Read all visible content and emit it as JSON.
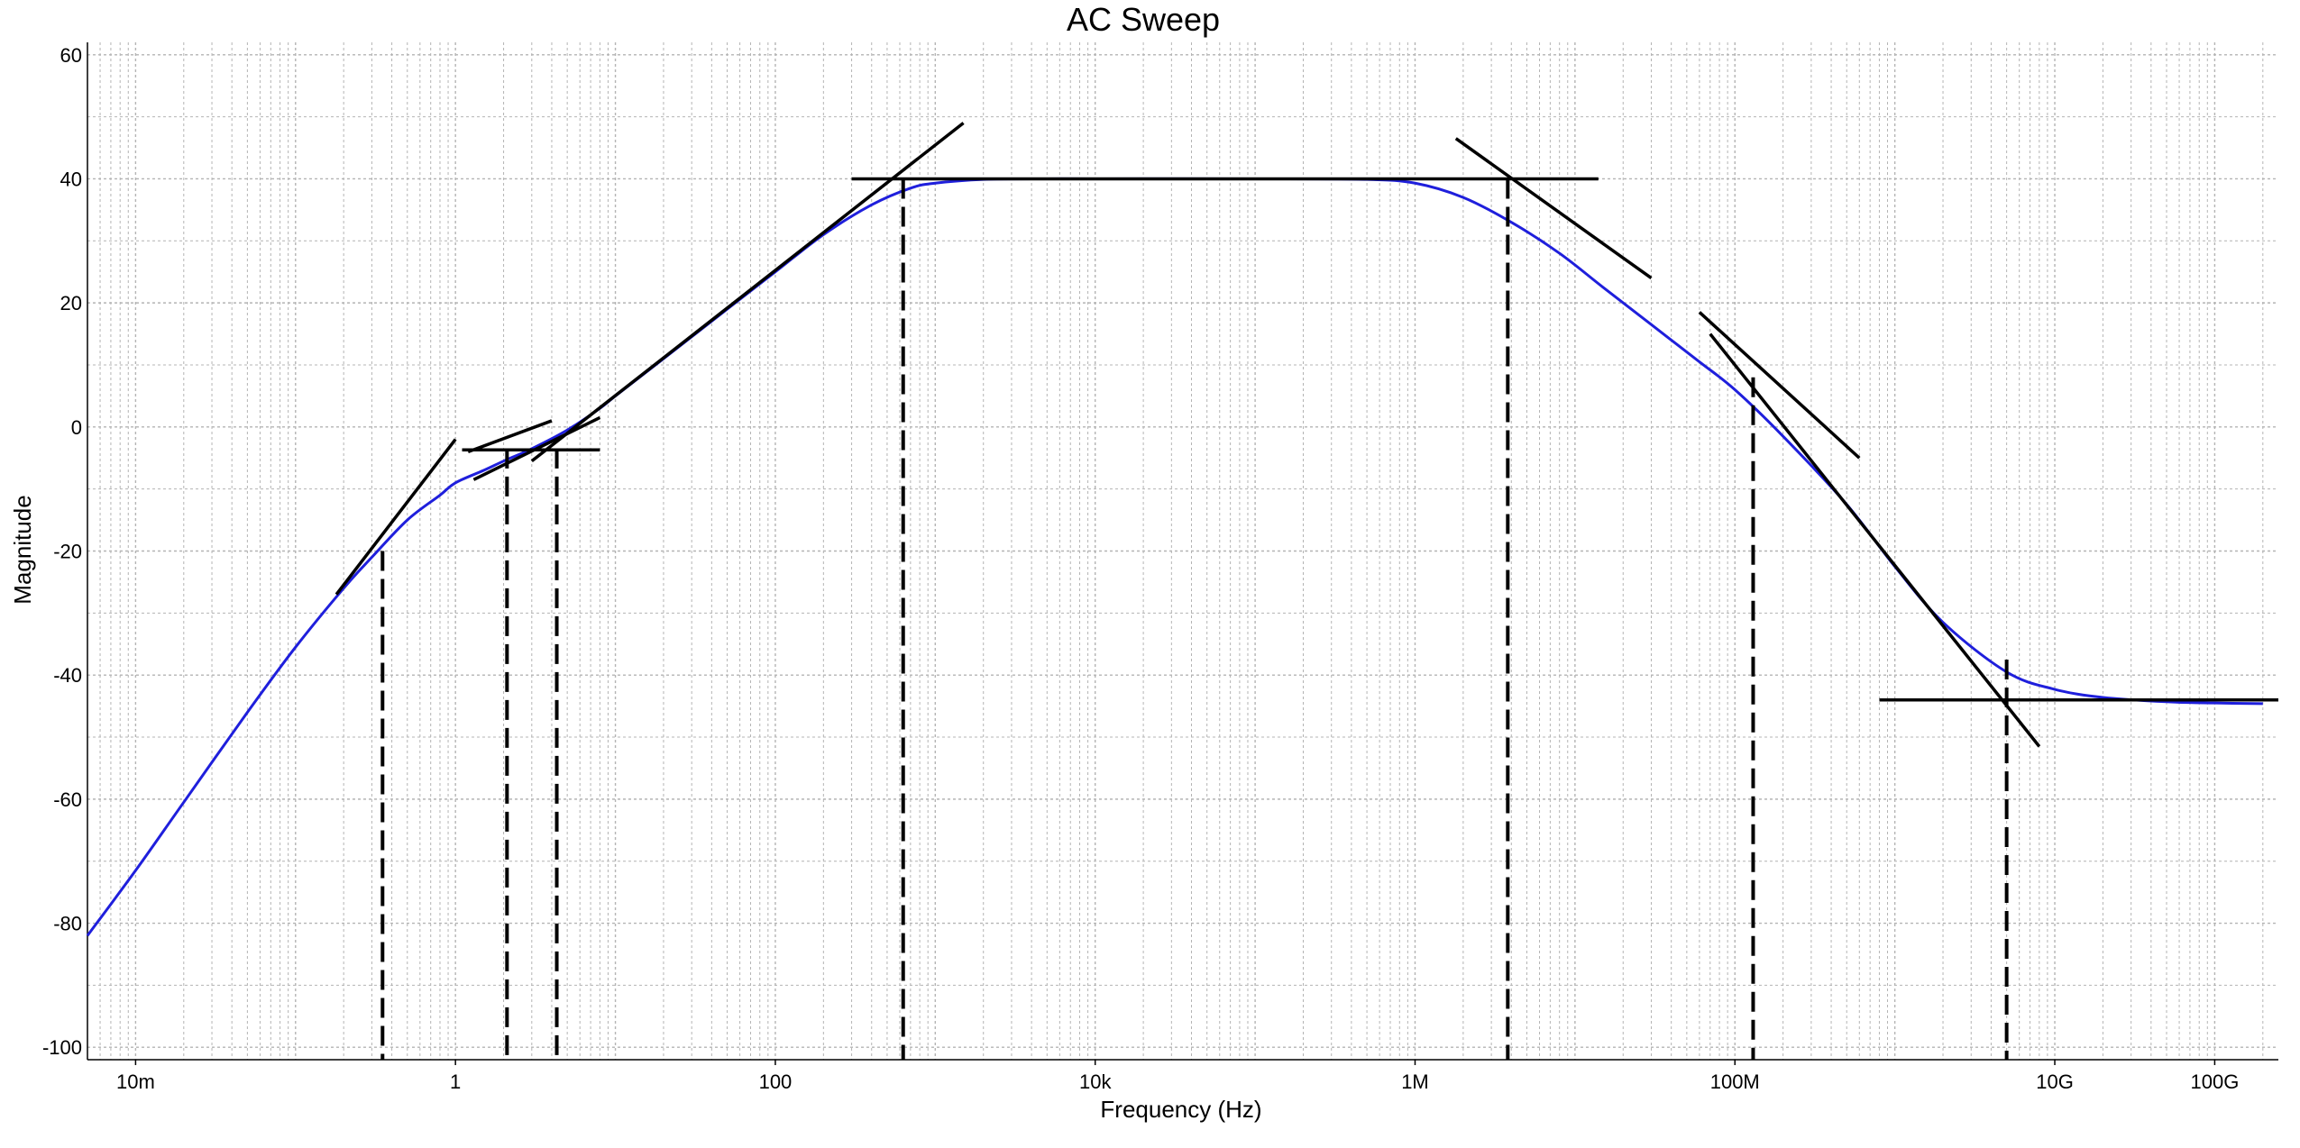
{
  "chart_data": {
    "type": "line",
    "title": "AC Sweep",
    "xlabel": "Frequency (Hz)",
    "ylabel": "Magnitude",
    "x_scale": "log",
    "xlim": [
      0.005,
      250000000000
    ],
    "ylim": [
      -102,
      62
    ],
    "x_ticks": [
      {
        "value": 0.01,
        "label": "10m"
      },
      {
        "value": 1,
        "label": "1"
      },
      {
        "value": 100,
        "label": "100"
      },
      {
        "value": 10000,
        "label": "10k"
      },
      {
        "value": 1000000,
        "label": "1M"
      },
      {
        "value": 100000000,
        "label": "100M"
      },
      {
        "value": 10000000000,
        "label": "10G"
      },
      {
        "value": 100000000000,
        "label": "100G"
      }
    ],
    "y_ticks": [
      {
        "value": 60,
        "label": "60"
      },
      {
        "value": 40,
        "label": "40"
      },
      {
        "value": 20,
        "label": "20"
      },
      {
        "value": 0,
        "label": "0"
      },
      {
        "value": -20,
        "label": "-20"
      },
      {
        "value": -40,
        "label": "-40"
      },
      {
        "value": -60,
        "label": "-60"
      },
      {
        "value": -80,
        "label": "-80"
      },
      {
        "value": -100,
        "label": "-100"
      }
    ],
    "grid": true,
    "series": [
      {
        "color": "#1f1fdc",
        "x": [
          0.005,
          0.01,
          0.02,
          0.05,
          0.1,
          0.2,
          0.3,
          0.5,
          0.8,
          1,
          1.5,
          2,
          3,
          5,
          8,
          10,
          20,
          50,
          100,
          200,
          400,
          700,
          1000,
          2000,
          5000,
          10000,
          100000,
          500000,
          1000000,
          2000000,
          4000000,
          8000000,
          15000000,
          30000000,
          60000000,
          100000000,
          200000000,
          500000000,
          1000000000,
          2000000000,
          5000000000,
          10000000000,
          20000000000,
          50000000000,
          100000000000,
          200000000000
        ],
        "values": [
          -82,
          -71.5,
          -60.5,
          -46,
          -35.5,
          -26,
          -21,
          -15,
          -11,
          -9,
          -7,
          -5.5,
          -3.5,
          -0.5,
          3,
          5,
          11,
          19,
          25,
          31,
          35.8,
          38.5,
          39.3,
          39.9,
          40,
          40,
          40,
          39.9,
          39.3,
          37,
          33,
          28,
          22.5,
          16.5,
          10.5,
          6,
          -1.5,
          -12.5,
          -22.5,
          -31.5,
          -39.5,
          -42.3,
          -43.6,
          -44.3,
          -44.5,
          -44.6
        ]
      }
    ],
    "asymptotes": [
      {
        "x": [
          0.18,
          1
        ],
        "values": [
          -27,
          -2
        ]
      },
      {
        "x": [
          1.2,
          4
        ],
        "values": [
          -4,
          1
        ]
      },
      {
        "x": [
          1.3,
          8
        ],
        "values": [
          -8.5,
          1.5
        ]
      },
      {
        "x": [
          1.1,
          8
        ],
        "values": [
          -3.7,
          -3.7
        ]
      },
      {
        "x": [
          3,
          1500
        ],
        "values": [
          -5.5,
          49
        ]
      },
      {
        "x": [
          300,
          14000000
        ],
        "values": [
          40,
          40
        ]
      },
      {
        "x": [
          1800000,
          30000000
        ],
        "values": [
          46.5,
          24
        ]
      },
      {
        "x": [
          60000000,
          600000000
        ],
        "values": [
          18.5,
          -5
        ]
      },
      {
        "x": [
          70000000,
          8000000000
        ],
        "values": [
          15,
          -51.5
        ]
      },
      {
        "x": [
          800000000,
          250000000000
        ],
        "values": [
          -44,
          -44
        ]
      }
    ],
    "markers": [
      {
        "x": 0.35,
        "y": -20
      },
      {
        "x": 2.1,
        "y": -3.5
      },
      {
        "x": 4.3,
        "y": -3.5
      },
      {
        "x": 630,
        "y": 40
      },
      {
        "x": 3800000,
        "y": 40
      },
      {
        "x": 130000000,
        "y": 8
      },
      {
        "x": 5000000000,
        "y": -37.5
      }
    ]
  }
}
